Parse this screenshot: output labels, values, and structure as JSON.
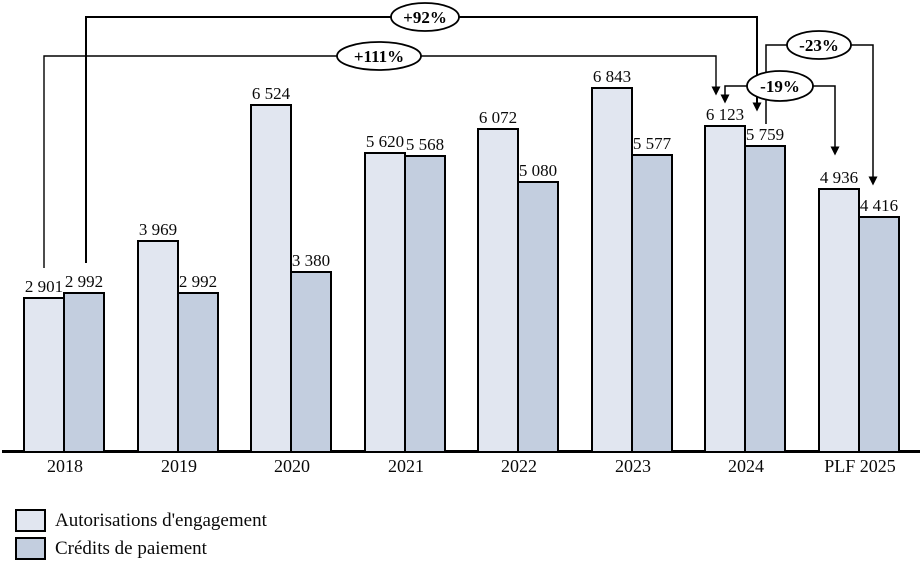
{
  "chart_data": {
    "type": "bar",
    "title": "",
    "xlabel": "",
    "ylabel": "",
    "ylim": [
      0,
      7200
    ],
    "grid": false,
    "legend_position": "bottom-left",
    "categories": [
      "2018",
      "2019",
      "2020",
      "2021",
      "2022",
      "2023",
      "2024",
      "PLF 2025"
    ],
    "series": [
      {
        "name": "Autorisations d'engagement",
        "key": "ae",
        "color": "#e1e6f0",
        "values": [
          2901,
          3969,
          6524,
          5620,
          6072,
          6843,
          6123,
          4936
        ],
        "labels": [
          "2 901",
          "3 969",
          "6 524",
          "5 620",
          "6 072",
          "6 843",
          "6 123",
          "4 936"
        ]
      },
      {
        "name": "Crédits de paiement",
        "key": "cp",
        "color": "#c3cedf",
        "values": [
          2992,
          2992,
          3380,
          5568,
          5080,
          5577,
          5759,
          4416
        ],
        "labels": [
          "2 992",
          "2 992",
          "3 380",
          "5 568",
          "5 080",
          "5 577",
          "5 759",
          "4 416"
        ]
      }
    ],
    "annotations": [
      {
        "label": "+92%",
        "series": "cp",
        "from_category": "2018",
        "to_category": "2024"
      },
      {
        "label": "+111%",
        "series": "ae",
        "from_category": "2018",
        "to_category": "2024"
      },
      {
        "label": "-23%",
        "series": "cp",
        "from_category": "2024",
        "to_category": "PLF 2025"
      },
      {
        "label": "-19%",
        "series": "ae",
        "from_category": "2024",
        "to_category": "PLF 2025"
      }
    ]
  },
  "colors": {
    "bar_outline": "#000000",
    "axis": "#000000",
    "annotation_line": "#000000",
    "oval_fill": "#ffffff",
    "background": "#ffffff"
  }
}
